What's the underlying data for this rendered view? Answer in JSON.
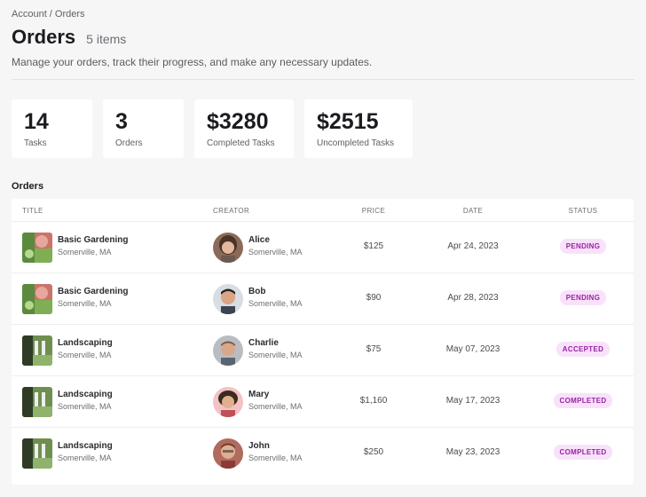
{
  "breadcrumb": {
    "account": "Account",
    "sep": " / ",
    "orders": "Orders"
  },
  "header": {
    "title": "Orders",
    "count": "5 items",
    "subtitle": "Manage your orders, track their progress, and make any necessary updates."
  },
  "stats": [
    {
      "value": "14",
      "label": "Tasks"
    },
    {
      "value": "3",
      "label": "Orders"
    },
    {
      "value": "$3280",
      "label": "Completed Tasks"
    },
    {
      "value": "$2515",
      "label": "Uncompleted Tasks"
    }
  ],
  "section_title": "Orders",
  "table": {
    "headers": {
      "title": "TITLE",
      "creator": "CREATOR",
      "price": "PRICE",
      "date": "DATE",
      "status": "STATUS"
    },
    "rows": [
      {
        "title": "Basic Gardening",
        "location": "Somerville, MA",
        "thumb": "gardening-icon",
        "creator": "Alice",
        "creator_location": "Somerville, MA",
        "price": "$125",
        "date": "Apr 24, 2023",
        "status": "PENDING"
      },
      {
        "title": "Basic Gardening",
        "location": "Somerville, MA",
        "thumb": "gardening-icon",
        "creator": "Bob",
        "creator_location": "Somerville, MA",
        "price": "$90",
        "date": "Apr 28, 2023",
        "status": "PENDING"
      },
      {
        "title": "Landscaping",
        "location": "Somerville, MA",
        "thumb": "landscaping-icon",
        "creator": "Charlie",
        "creator_location": "Somerville, MA",
        "price": "$75",
        "date": "May 07, 2023",
        "status": "ACCEPTED"
      },
      {
        "title": "Landscaping",
        "location": "Somerville, MA",
        "thumb": "landscaping-icon",
        "creator": "Mary",
        "creator_location": "Somerville, MA",
        "price": "$1,160",
        "date": "May 17, 2023",
        "status": "COMPLETED"
      },
      {
        "title": "Landscaping",
        "location": "Somerville, MA",
        "thumb": "landscaping-icon",
        "creator": "John",
        "creator_location": "Somerville, MA",
        "price": "$250",
        "date": "May 23, 2023",
        "status": "COMPLETED"
      }
    ]
  },
  "colors": {
    "background": "#f6f6f7",
    "badge_bg": "#f8e2f9",
    "badge_text": "#9a1fa8"
  }
}
